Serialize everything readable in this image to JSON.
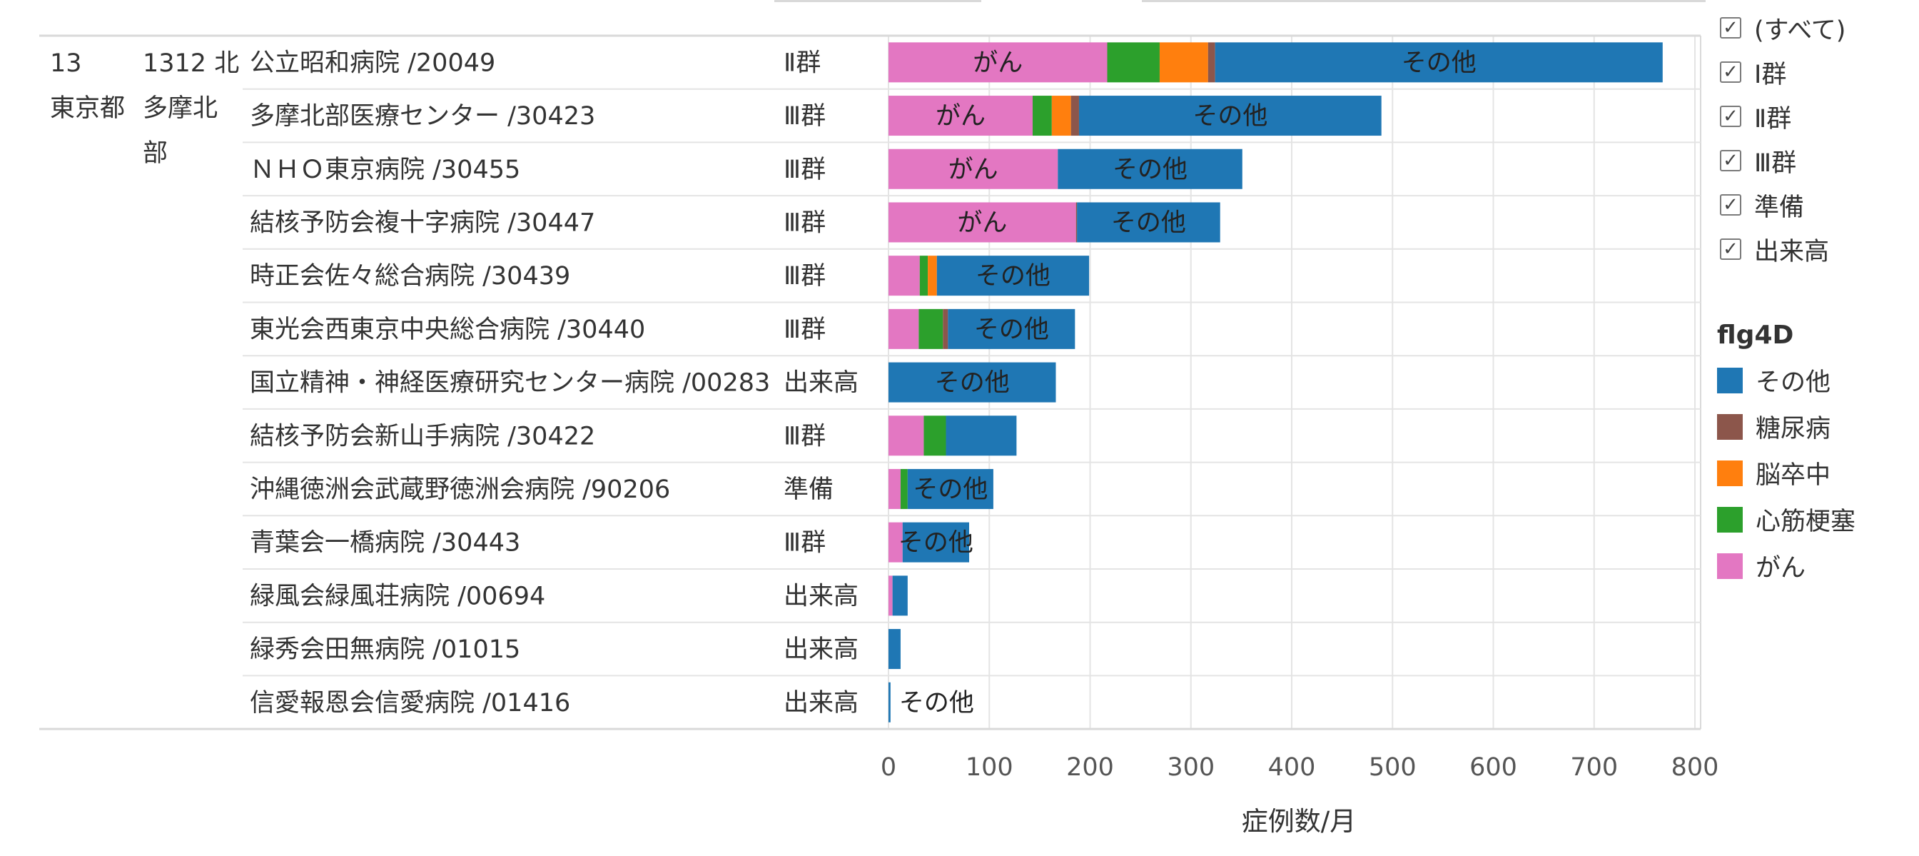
{
  "filter": {
    "items": [
      "(すべて)",
      "Ⅰ群",
      "Ⅱ群",
      "Ⅲ群",
      "準備",
      "出来高"
    ],
    "check_glyph": "✓"
  },
  "legend": {
    "title": "flg4D",
    "items": [
      {
        "label": "その他",
        "color": "#1f77b4"
      },
      {
        "label": "糖尿病",
        "color": "#8c564b"
      },
      {
        "label": "脳卒中",
        "color": "#ff7f0e"
      },
      {
        "label": "心筋梗塞",
        "color": "#2ca02c"
      },
      {
        "label": "がん",
        "color": "#e377c2"
      }
    ]
  },
  "chart_data": {
    "type": "bar",
    "orientation": "horizontal",
    "stacked": true,
    "group_labels": {
      "pref_code": "13",
      "pref_name": "東京都",
      "area_lines": [
        "1312 北",
        "多摩北",
        "部"
      ]
    },
    "categories": [
      "公立昭和病院 /20049",
      "多摩北部医療センター /30423",
      "ＮＨＯ東京病院 /30455",
      "結核予防会複十字病院 /30447",
      "時正会佐々総合病院 /30439",
      "東光会西東京中央総合病院 /30440",
      "国立精神・神経医療研究センター病院 /00283",
      "結核予防会新山手病院 /30422",
      "沖縄徳洲会武蔵野徳洲会病院 /90206",
      "青葉会一橋病院 /30443",
      "緑風会緑風荘病院 /00694",
      "緑秀会田無病院 /01015",
      "信愛報恩会信愛病院 /01416"
    ],
    "groups": [
      "Ⅱ群",
      "Ⅲ群",
      "Ⅲ群",
      "Ⅲ群",
      "Ⅲ群",
      "Ⅲ群",
      "出来高",
      "Ⅲ群",
      "準備",
      "Ⅲ群",
      "出来高",
      "出来高",
      "出来高"
    ],
    "series": [
      {
        "name": "がん",
        "color": "#e377c2",
        "values": [
          217,
          143,
          168,
          186,
          31,
          30,
          0,
          35,
          12,
          14,
          4,
          0,
          0
        ]
      },
      {
        "name": "心筋梗塞",
        "color": "#2ca02c",
        "values": [
          52,
          19,
          0,
          0,
          8,
          24,
          0,
          22,
          7,
          0,
          0,
          0,
          0
        ]
      },
      {
        "name": "脳卒中",
        "color": "#ff7f0e",
        "values": [
          48,
          19,
          0,
          0,
          9,
          0,
          0,
          0,
          0,
          0,
          0,
          0,
          0
        ]
      },
      {
        "name": "糖尿病",
        "color": "#8c564b",
        "values": [
          7,
          8,
          0,
          1,
          0,
          5,
          0,
          0,
          0,
          0,
          0,
          0,
          0
        ]
      },
      {
        "name": "その他",
        "color": "#1f77b4",
        "values": [
          444,
          300,
          183,
          142,
          151,
          126,
          166,
          70,
          85,
          66,
          15,
          12,
          2
        ]
      }
    ],
    "segment_labels": [
      [
        "がん",
        "",
        "",
        "",
        "その他"
      ],
      [
        "がん",
        "",
        "",
        "",
        "その他"
      ],
      [
        "がん",
        "",
        "",
        "",
        "その他"
      ],
      [
        "がん",
        "",
        "",
        "",
        "その他"
      ],
      [
        "",
        "",
        "",
        "",
        "その他"
      ],
      [
        "",
        "",
        "",
        "",
        "その他"
      ],
      [
        "",
        "",
        "",
        "",
        "その他"
      ],
      [
        "",
        "",
        "",
        "",
        ""
      ],
      [
        "",
        "",
        "",
        "",
        "その他"
      ],
      [
        "",
        "",
        "",
        "",
        "その他"
      ],
      [
        "",
        "",
        "",
        "",
        ""
      ],
      [
        "",
        "",
        "",
        "",
        ""
      ],
      [
        "",
        "",
        "",
        "",
        "その他"
      ]
    ],
    "xlabel": "症例数/月",
    "xlim": [
      0,
      800
    ],
    "xticks": [
      0,
      100,
      200,
      300,
      400,
      500,
      600,
      700,
      800
    ],
    "grid": true,
    "legend_position": "right"
  }
}
